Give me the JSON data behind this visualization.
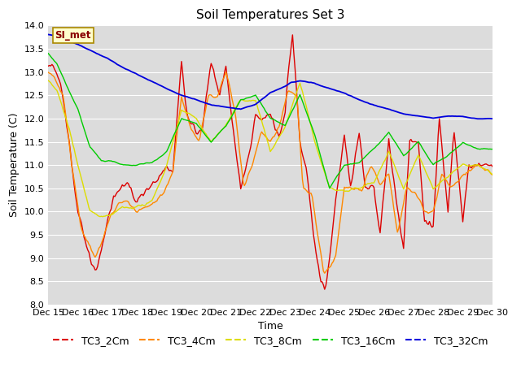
{
  "title": "Soil Temperatures Set 3",
  "xlabel": "Time",
  "ylabel": "Soil Temperature (C)",
  "ylim": [
    8.0,
    14.0
  ],
  "yticks": [
    8.0,
    8.5,
    9.0,
    9.5,
    10.0,
    10.5,
    11.0,
    11.5,
    12.0,
    12.5,
    13.0,
    13.5,
    14.0
  ],
  "x_labels": [
    "Dec 15",
    "Dec 16",
    "Dec 17",
    "Dec 18",
    "Dec 19",
    "Dec 20",
    "Dec 21",
    "Dec 22",
    "Dec 23",
    "Dec 24",
    "Dec 25",
    "Dec 26",
    "Dec 27",
    "Dec 28",
    "Dec 29",
    "Dec 30"
  ],
  "colors": {
    "TC3_2Cm": "#dd0000",
    "TC3_4Cm": "#ff8800",
    "TC3_8Cm": "#dddd00",
    "TC3_16Cm": "#00cc00",
    "TC3_32Cm": "#0000dd"
  },
  "bg_color": "#dcdcdc",
  "annotation_text": "SI_met",
  "annotation_bg": "#ffffcc",
  "annotation_border": "#aa8800",
  "annotation_text_color": "#880000",
  "title_fontsize": 11,
  "axis_label_fontsize": 9,
  "tick_fontsize": 8,
  "legend_fontsize": 9,
  "linewidth": 1.0
}
